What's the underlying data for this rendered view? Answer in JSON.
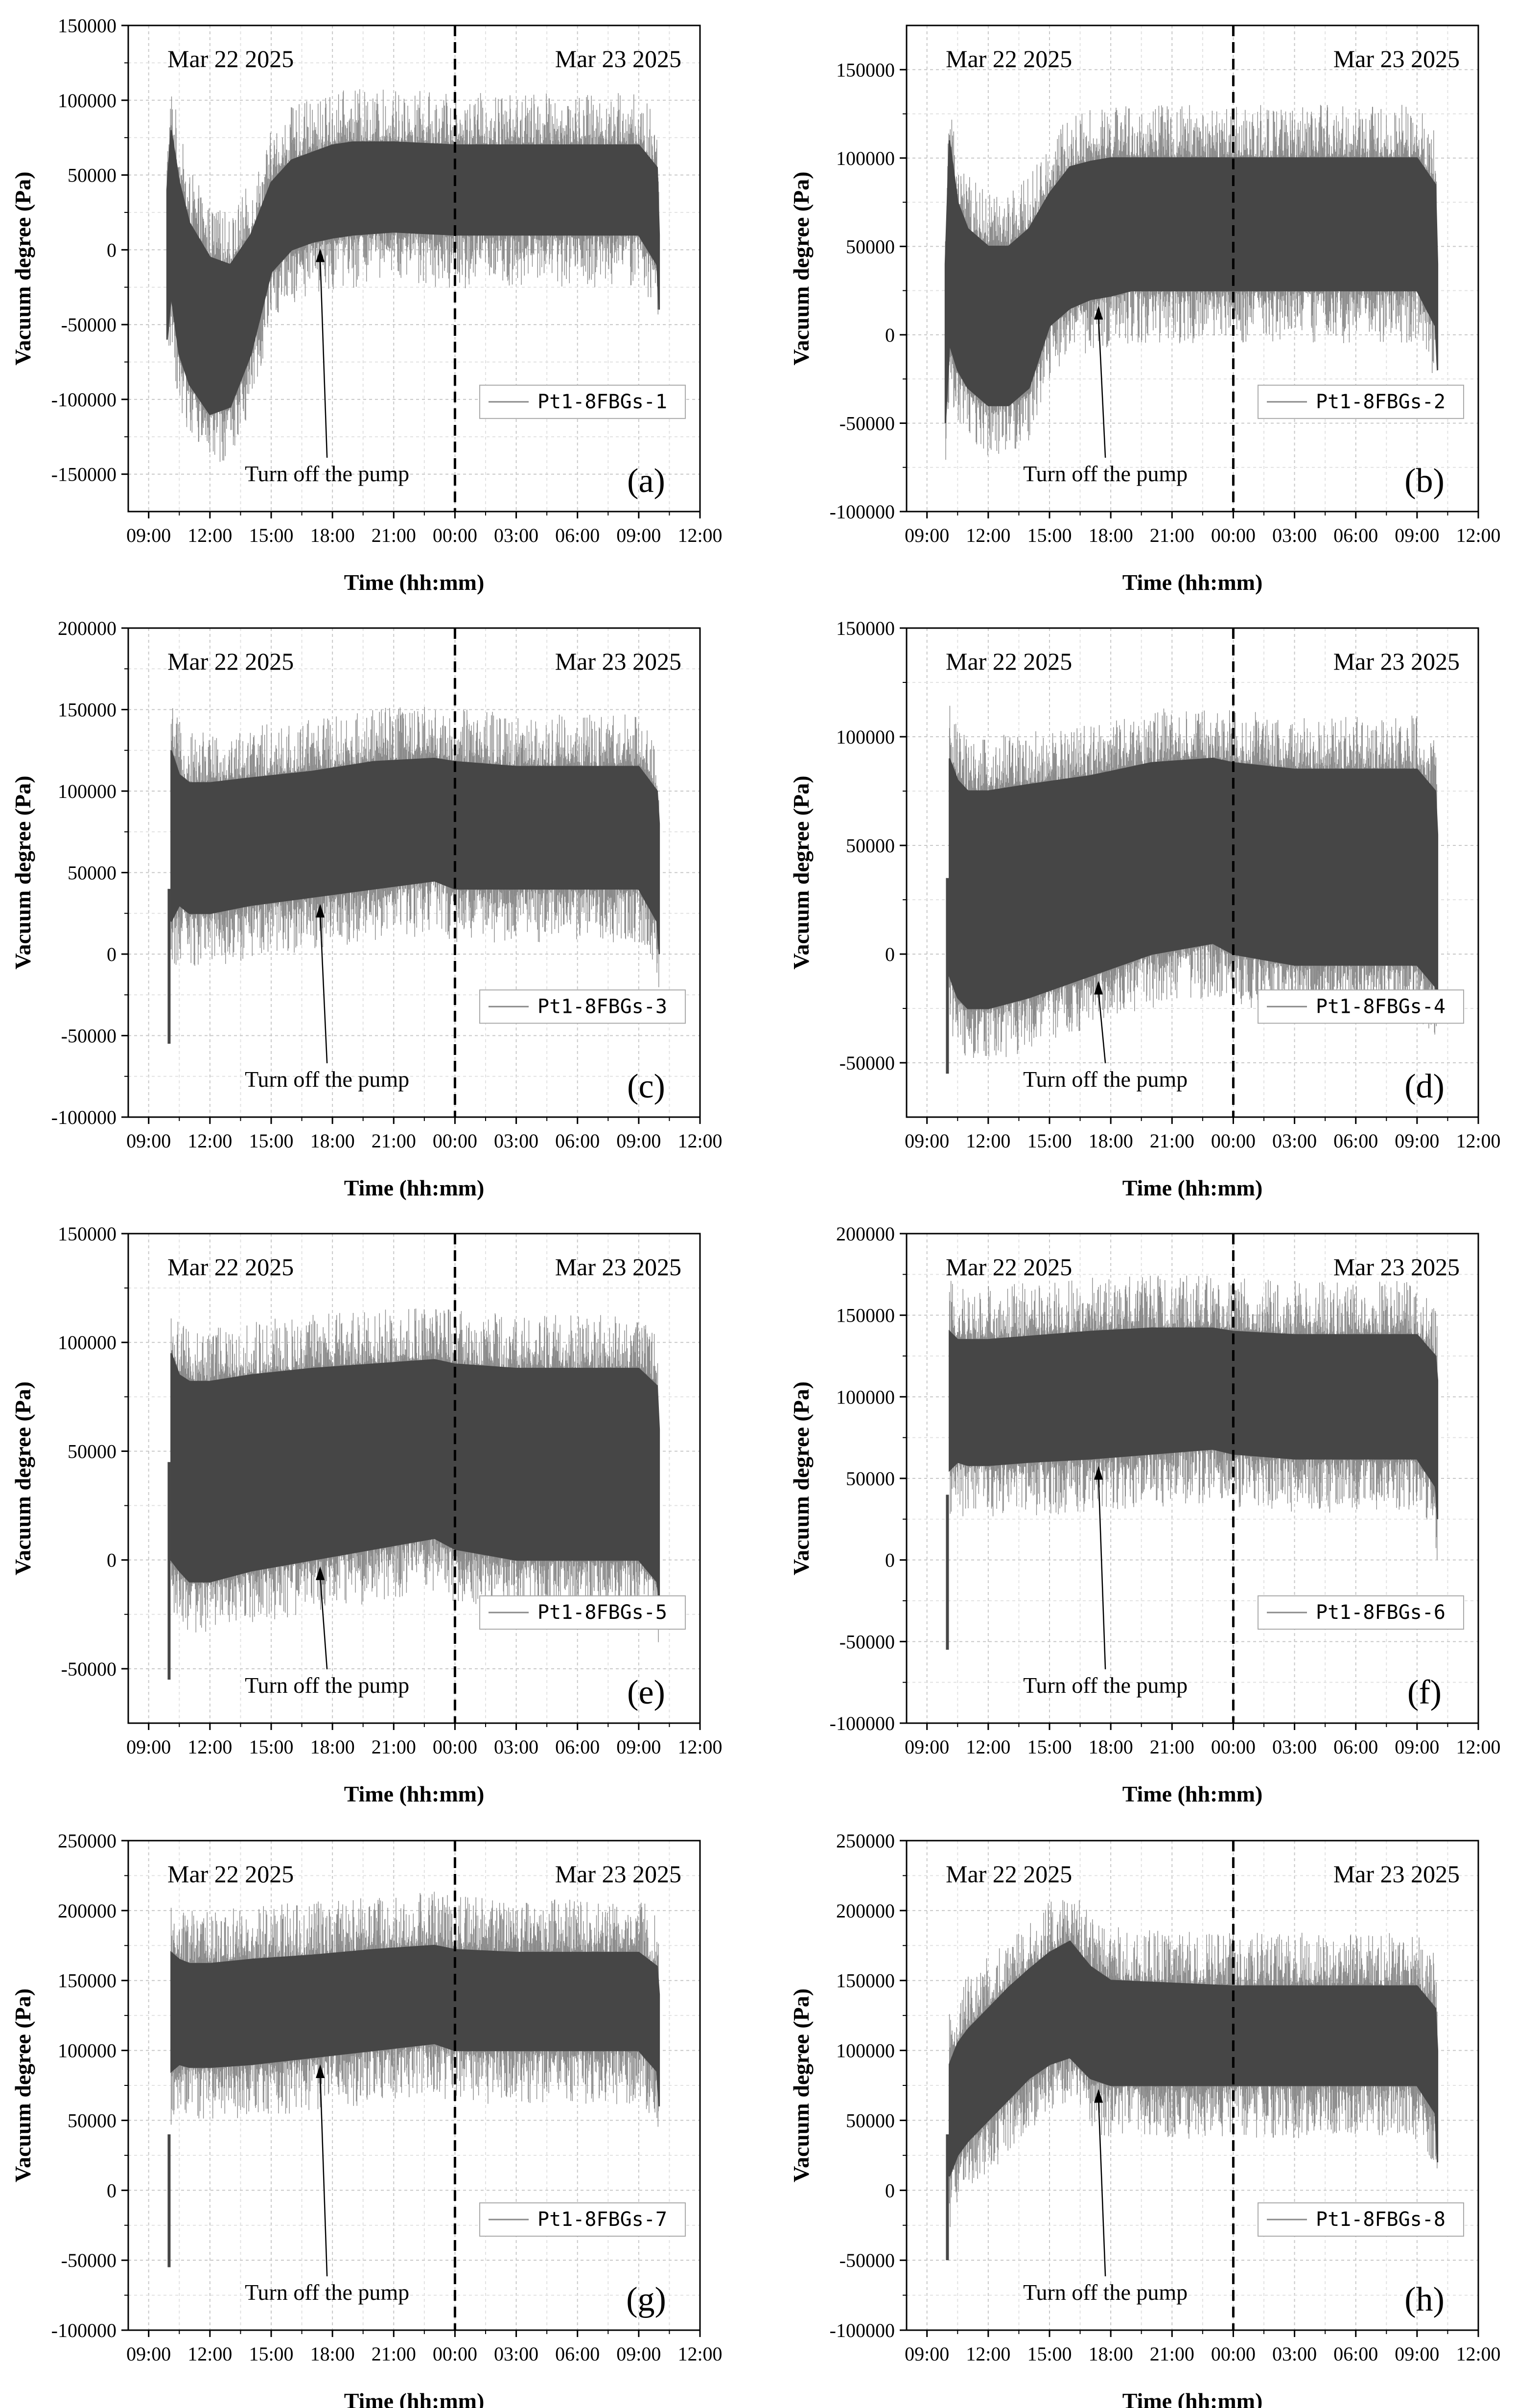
{
  "chart_data": [
    {
      "panel": "(a)",
      "type": "area",
      "series": [
        {
          "name": "Pt1-8FBGs-1"
        }
      ],
      "xlabel": "Time (hh:mm)",
      "ylabel": "Vacuum degree (Pa)",
      "xticks": [
        "09:00",
        "12:00",
        "15:00",
        "18:00",
        "21:00",
        "00:00",
        "03:00",
        "06:00",
        "09:00",
        "12:00"
      ],
      "ylim": [
        -175000,
        150000
      ],
      "yticks": [
        -150000,
        -100000,
        -50000,
        0,
        50000,
        100000,
        150000
      ],
      "date_labels": [
        "Mar 22 2025",
        "Mar 23 2025"
      ],
      "annotation": "Turn off the pump",
      "envelope": {
        "t": [
          0.9,
          1.1,
          1.5,
          2,
          3,
          4,
          5,
          6,
          7,
          8,
          9,
          10,
          12,
          15,
          18,
          21,
          24,
          24.9,
          25.0
        ],
        "upper": [
          40000,
          80000,
          45000,
          18000,
          -5000,
          -10000,
          10000,
          45000,
          60000,
          65000,
          70000,
          72000,
          72000,
          70000,
          70000,
          70000,
          70000,
          55000,
          10000
        ],
        "lower": [
          -60000,
          -30000,
          -70000,
          -90000,
          -110000,
          -105000,
          -70000,
          -15000,
          0,
          5000,
          8000,
          10000,
          12000,
          10000,
          10000,
          10000,
          10000,
          -10000,
          -40000
        ]
      },
      "grid": true,
      "legend_position": "right, lower"
    },
    {
      "panel": "(b)",
      "type": "area",
      "series": [
        {
          "name": "Pt1-8FBGs-2"
        }
      ],
      "xlabel": "Time (hh:mm)",
      "ylabel": "Vacuum degree (Pa)",
      "xticks": [
        "09:00",
        "12:00",
        "15:00",
        "18:00",
        "21:00",
        "00:00",
        "03:00",
        "06:00",
        "09:00",
        "12:00"
      ],
      "ylim": [
        -100000,
        175000
      ],
      "yticks": [
        -100000,
        -50000,
        0,
        50000,
        100000,
        150000
      ],
      "date_labels": [
        "Mar 22 2025",
        "Mar 23 2025"
      ],
      "annotation": "Turn off the pump",
      "envelope": {
        "t": [
          0.9,
          1.1,
          1.5,
          2,
          3,
          4,
          5,
          6,
          7,
          8,
          9,
          10,
          12,
          15,
          18,
          21,
          24,
          24.9,
          25.0
        ],
        "upper": [
          40000,
          110000,
          75000,
          60000,
          50000,
          50000,
          60000,
          80000,
          95000,
          98000,
          100000,
          100000,
          100000,
          100000,
          100000,
          100000,
          100000,
          85000,
          40000
        ],
        "lower": [
          -50000,
          -5000,
          -20000,
          -30000,
          -40000,
          -40000,
          -30000,
          5000,
          15000,
          20000,
          22000,
          25000,
          25000,
          25000,
          25000,
          25000,
          25000,
          5000,
          -20000
        ]
      },
      "grid": true,
      "legend_position": "right, lower"
    },
    {
      "panel": "(c)",
      "type": "area",
      "series": [
        {
          "name": "Pt1-8FBGs-3"
        }
      ],
      "xlabel": "Time (hh:mm)",
      "ylabel": "Vacuum degree (Pa)",
      "xticks": [
        "09:00",
        "12:00",
        "15:00",
        "18:00",
        "21:00",
        "00:00",
        "03:00",
        "06:00",
        "09:00",
        "12:00"
      ],
      "ylim": [
        -100000,
        200000
      ],
      "yticks": [
        -100000,
        -50000,
        0,
        50000,
        100000,
        150000,
        200000
      ],
      "date_labels": [
        "Mar 22 2025",
        "Mar 23 2025"
      ],
      "annotation": "Turn off the pump",
      "envelope": {
        "t": [
          1.1,
          1.5,
          2,
          3,
          5,
          8,
          11,
          14,
          15,
          18,
          21,
          24,
          24.9,
          25.0
        ],
        "upper": [
          125000,
          110000,
          105000,
          105000,
          108000,
          112000,
          118000,
          120000,
          118000,
          115000,
          115000,
          115000,
          100000,
          80000
        ],
        "lower": [
          20000,
          30000,
          25000,
          25000,
          30000,
          35000,
          40000,
          45000,
          40000,
          40000,
          40000,
          40000,
          20000,
          0
        ]
      },
      "spike": {
        "t": 1.0,
        "lo": -55000,
        "hi": 40000
      },
      "grid": true,
      "legend_position": "right, lower"
    },
    {
      "panel": "(d)",
      "type": "area",
      "series": [
        {
          "name": "Pt1-8FBGs-4"
        }
      ],
      "xlabel": "Time (hh:mm)",
      "ylabel": "Vacuum degree (Pa)",
      "xticks": [
        "09:00",
        "12:00",
        "15:00",
        "18:00",
        "21:00",
        "00:00",
        "03:00",
        "06:00",
        "09:00",
        "12:00"
      ],
      "ylim": [
        -75000,
        150000
      ],
      "yticks": [
        -50000,
        0,
        50000,
        100000,
        150000
      ],
      "date_labels": [
        "Mar 22 2025",
        "Mar 23 2025"
      ],
      "annotation": "Turn off the pump",
      "envelope": {
        "t": [
          1.1,
          1.5,
          2,
          3,
          5,
          8,
          11,
          14,
          15,
          18,
          21,
          24,
          24.9,
          25.0
        ],
        "upper": [
          90000,
          80000,
          75000,
          75000,
          78000,
          82000,
          88000,
          90000,
          88000,
          85000,
          85000,
          85000,
          75000,
          55000
        ],
        "lower": [
          -10000,
          -20000,
          -25000,
          -25000,
          -20000,
          -10000,
          0,
          5000,
          0,
          -5000,
          -5000,
          -5000,
          -15000,
          -20000
        ]
      },
      "spike": {
        "t": 1.0,
        "lo": -55000,
        "hi": 35000
      },
      "grid": true,
      "legend_position": "right, lower"
    },
    {
      "panel": "(e)",
      "type": "area",
      "series": [
        {
          "name": "Pt1-8FBGs-5"
        }
      ],
      "xlabel": "Time (hh:mm)",
      "ylabel": "Vacuum degree (Pa)",
      "xticks": [
        "09:00",
        "12:00",
        "15:00",
        "18:00",
        "21:00",
        "00:00",
        "03:00",
        "06:00",
        "09:00",
        "12:00"
      ],
      "ylim": [
        -75000,
        150000
      ],
      "yticks": [
        -50000,
        0,
        50000,
        100000,
        150000
      ],
      "date_labels": [
        "Mar 22 2025",
        "Mar 23 2025"
      ],
      "annotation": "Turn off the pump",
      "envelope": {
        "t": [
          1.1,
          1.5,
          2,
          3,
          5,
          8,
          11,
          14,
          15,
          18,
          21,
          24,
          24.9,
          25.0
        ],
        "upper": [
          95000,
          85000,
          82000,
          82000,
          85000,
          88000,
          90000,
          92000,
          90000,
          88000,
          88000,
          88000,
          80000,
          60000
        ],
        "lower": [
          0,
          -5000,
          -10000,
          -10000,
          -5000,
          0,
          5000,
          10000,
          5000,
          0,
          0,
          0,
          -10000,
          -20000
        ]
      },
      "spike": {
        "t": 1.0,
        "lo": -55000,
        "hi": 45000
      },
      "grid": true,
      "legend_position": "right, lower"
    },
    {
      "panel": "(f)",
      "type": "area",
      "series": [
        {
          "name": "Pt1-8FBGs-6"
        }
      ],
      "xlabel": "Time (hh:mm)",
      "ylabel": "Vacuum degree (Pa)",
      "xticks": [
        "09:00",
        "12:00",
        "15:00",
        "18:00",
        "21:00",
        "00:00",
        "03:00",
        "06:00",
        "09:00",
        "12:00"
      ],
      "ylim": [
        -100000,
        200000
      ],
      "yticks": [
        -100000,
        -50000,
        0,
        50000,
        100000,
        150000,
        200000
      ],
      "date_labels": [
        "Mar 22 2025",
        "Mar 23 2025"
      ],
      "annotation": "Turn off the pump",
      "envelope": {
        "t": [
          1.1,
          1.5,
          2,
          3,
          5,
          8,
          11,
          14,
          15,
          18,
          21,
          24,
          24.9,
          25.0
        ],
        "upper": [
          140000,
          135000,
          135000,
          135000,
          137000,
          140000,
          142000,
          142000,
          140000,
          138000,
          138000,
          138000,
          125000,
          110000
        ],
        "lower": [
          55000,
          60000,
          58000,
          58000,
          60000,
          62000,
          65000,
          68000,
          65000,
          62000,
          62000,
          62000,
          45000,
          25000
        ]
      },
      "spike": {
        "t": 1.0,
        "lo": -55000,
        "hi": 40000
      },
      "grid": true,
      "legend_position": "right, lower"
    },
    {
      "panel": "(g)",
      "type": "area",
      "series": [
        {
          "name": "Pt1-8FBGs-7"
        }
      ],
      "xlabel": "Time (hh:mm)",
      "ylabel": "Vacuum degree (Pa)",
      "xticks": [
        "09:00",
        "12:00",
        "15:00",
        "18:00",
        "21:00",
        "00:00",
        "03:00",
        "06:00",
        "09:00",
        "12:00"
      ],
      "ylim": [
        -100000,
        250000
      ],
      "yticks": [
        -100000,
        -50000,
        0,
        50000,
        100000,
        150000,
        200000,
        250000
      ],
      "date_labels": [
        "Mar 22 2025",
        "Mar 23 2025"
      ],
      "annotation": "Turn off the pump",
      "envelope": {
        "t": [
          1.1,
          1.5,
          2,
          3,
          5,
          8,
          11,
          14,
          15,
          18,
          21,
          24,
          24.9,
          25.0
        ],
        "upper": [
          170000,
          165000,
          162000,
          162000,
          165000,
          168000,
          172000,
          175000,
          172000,
          170000,
          170000,
          170000,
          160000,
          140000
        ],
        "lower": [
          85000,
          90000,
          88000,
          88000,
          90000,
          95000,
          100000,
          105000,
          100000,
          100000,
          100000,
          100000,
          85000,
          60000
        ]
      },
      "spike": {
        "t": 1.0,
        "lo": -55000,
        "hi": 40000
      },
      "grid": true,
      "legend_position": "right, lower"
    },
    {
      "panel": "(h)",
      "type": "area",
      "series": [
        {
          "name": "Pt1-8FBGs-8"
        }
      ],
      "xlabel": "Time (hh:mm)",
      "ylabel": "Vacuum degree (Pa)",
      "xticks": [
        "09:00",
        "12:00",
        "15:00",
        "18:00",
        "21:00",
        "00:00",
        "03:00",
        "06:00",
        "09:00",
        "12:00"
      ],
      "ylim": [
        -100000,
        250000
      ],
      "yticks": [
        -100000,
        -50000,
        0,
        50000,
        100000,
        150000,
        200000,
        250000
      ],
      "date_labels": [
        "Mar 22 2025",
        "Mar 23 2025"
      ],
      "annotation": "Turn off the pump",
      "envelope": {
        "t": [
          1.1,
          1.5,
          2,
          3,
          4,
          5,
          6,
          7,
          8,
          9,
          12,
          15,
          18,
          21,
          24,
          24.9,
          25.0
        ],
        "upper": [
          90000,
          105000,
          115000,
          130000,
          145000,
          158000,
          170000,
          178000,
          160000,
          150000,
          148000,
          146000,
          146000,
          146000,
          146000,
          130000,
          100000
        ],
        "lower": [
          10000,
          25000,
          35000,
          50000,
          65000,
          80000,
          90000,
          95000,
          80000,
          75000,
          75000,
          75000,
          75000,
          75000,
          75000,
          55000,
          20000
        ]
      },
      "spike": {
        "t": 1.0,
        "lo": -50000,
        "hi": 40000
      },
      "grid": true,
      "legend_position": "right, lower"
    }
  ]
}
